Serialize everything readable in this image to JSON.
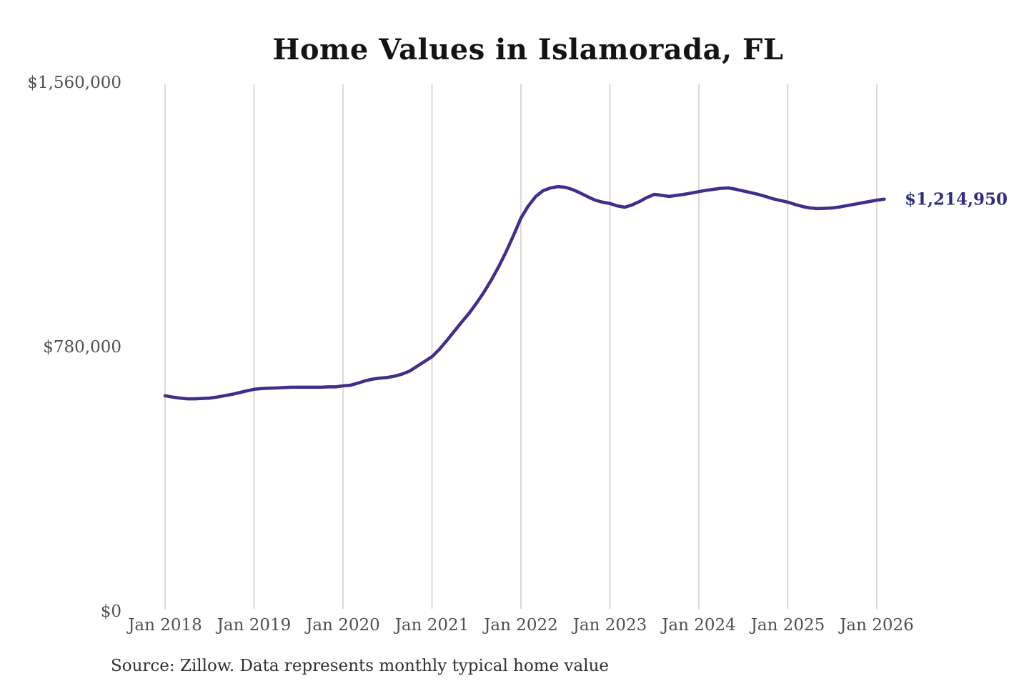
{
  "header": {
    "title": "Home Values in Islamorada, FL"
  },
  "footer": {
    "source": "Source: Zillow. Data represents monthly typical home value"
  },
  "chart_data": {
    "type": "line",
    "title": "Home Values in Islamorada, FL",
    "series_name": "Monthly typical home value",
    "x": [
      "2018-01",
      "2018-02",
      "2018-03",
      "2018-04",
      "2018-05",
      "2018-06",
      "2018-07",
      "2018-08",
      "2018-09",
      "2018-10",
      "2018-11",
      "2018-12",
      "2019-01",
      "2019-02",
      "2019-03",
      "2019-04",
      "2019-05",
      "2019-06",
      "2019-07",
      "2019-08",
      "2019-09",
      "2019-10",
      "2019-11",
      "2019-12",
      "2020-01",
      "2020-02",
      "2020-03",
      "2020-04",
      "2020-05",
      "2020-06",
      "2020-07",
      "2020-08",
      "2020-09",
      "2020-10",
      "2020-11",
      "2020-12",
      "2021-01",
      "2021-02",
      "2021-03",
      "2021-04",
      "2021-05",
      "2021-06",
      "2021-07",
      "2021-08",
      "2021-09",
      "2021-10",
      "2021-11",
      "2021-12",
      "2022-01",
      "2022-02",
      "2022-03",
      "2022-04",
      "2022-05",
      "2022-06",
      "2022-07",
      "2022-08",
      "2022-09",
      "2022-10",
      "2022-11",
      "2022-12",
      "2023-01",
      "2023-02",
      "2023-03",
      "2023-04",
      "2023-05",
      "2023-06",
      "2023-07",
      "2023-08",
      "2023-09",
      "2023-10",
      "2023-11",
      "2023-12",
      "2024-01",
      "2024-02",
      "2024-03",
      "2024-04",
      "2024-05",
      "2024-06",
      "2024-07",
      "2024-08",
      "2024-09",
      "2024-10",
      "2024-11",
      "2024-12",
      "2025-01",
      "2025-02",
      "2025-03",
      "2025-04",
      "2025-05",
      "2025-06",
      "2025-07",
      "2025-08",
      "2025-09",
      "2025-10",
      "2025-11",
      "2025-12",
      "2026-01",
      "2026-02"
    ],
    "values": [
      635000,
      631000,
      628000,
      626000,
      626000,
      627000,
      628000,
      631000,
      635000,
      639000,
      644000,
      649000,
      654000,
      656000,
      657000,
      658000,
      659000,
      660000,
      660000,
      660000,
      660000,
      660000,
      661000,
      661000,
      664000,
      666000,
      672000,
      679000,
      684000,
      687000,
      689000,
      693000,
      699000,
      708000,
      722000,
      736000,
      750000,
      772000,
      798000,
      825000,
      852000,
      878000,
      908000,
      940000,
      976000,
      1016000,
      1060000,
      1108000,
      1159000,
      1195000,
      1223000,
      1240000,
      1248000,
      1252000,
      1250000,
      1243000,
      1233000,
      1222000,
      1212000,
      1206000,
      1202000,
      1195000,
      1191000,
      1198000,
      1208000,
      1220000,
      1229000,
      1226000,
      1223000,
      1226000,
      1229000,
      1233000,
      1237000,
      1241000,
      1244000,
      1247000,
      1248000,
      1244000,
      1239000,
      1234000,
      1229000,
      1223000,
      1216000,
      1211000,
      1206000,
      1199000,
      1193000,
      1189000,
      1187000,
      1188000,
      1189000,
      1192000,
      1196000,
      1200000,
      1204000,
      1208000,
      1212000,
      1214950
    ],
    "x_tick_labels": [
      "Jan 2018",
      "Jan 2019",
      "Jan 2020",
      "Jan 2021",
      "Jan 2022",
      "Jan 2023",
      "Jan 2024",
      "Jan 2025",
      "Jan 2026"
    ],
    "y_ticks": [
      {
        "value": 0,
        "label": "$0"
      },
      {
        "value": 780000,
        "label": "$780,000"
      },
      {
        "value": 1560000,
        "label": "$1,560,000"
      }
    ],
    "ylim": [
      0,
      1560000
    ],
    "grid": "vertical-only",
    "legend": "none",
    "latest_value": 1214950,
    "latest_value_label": "$1,214,950",
    "line_color": "#39318C",
    "grid_color": "#c9c9c9",
    "axis_label_color": "#4f4f4f",
    "annotation_color": "#302C80"
  }
}
